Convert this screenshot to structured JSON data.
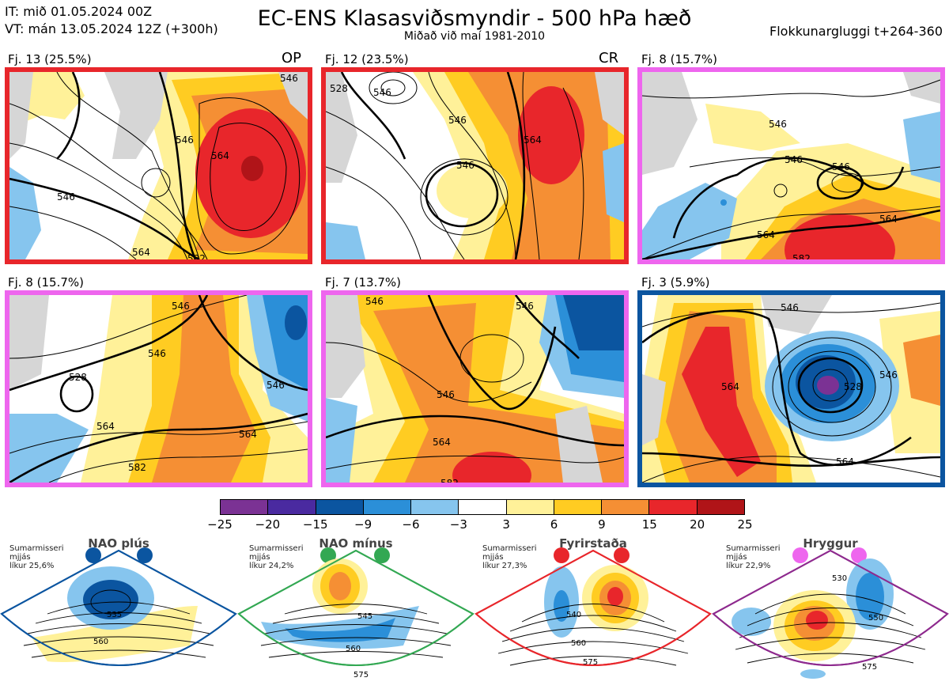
{
  "header": {
    "init_time": "IT: mið 01.05.2024 00Z",
    "valid_time": "VT: mán 13.05.2024 12Z  (+300h)",
    "title": "EC-ENS Klasasviðsmyndir - 500 hPa hæð",
    "subtitle": "Miðað við maí 1981-2010",
    "window": "Flokkunargluggi t+264-360"
  },
  "colors": {
    "nao_plus": "#0b55a0",
    "nao_minus": "#33a853",
    "blocking": "#e8262b",
    "ridge": "#ee66ee"
  },
  "panels": [
    {
      "label": "Fj. 13 (25.5%)",
      "tag": "OP",
      "border": "#e8262b",
      "contours": [
        "546",
        "546",
        "564",
        "546",
        "564",
        "582"
      ]
    },
    {
      "label": "Fj. 12 (23.5%)",
      "tag": "CR",
      "border": "#e8262b",
      "contours": [
        "546",
        "546",
        "564",
        "528",
        "546"
      ]
    },
    {
      "label": "Fj. 8 (15.7%)",
      "tag": "",
      "border": "#ee66ee",
      "contours": [
        "546",
        "546",
        "546",
        "564",
        "564",
        "582"
      ]
    },
    {
      "label": "Fj. 8 (15.7%)",
      "tag": "",
      "border": "#ee66ee",
      "contours": [
        "546",
        "546",
        "528",
        "546",
        "564",
        "582",
        "564"
      ]
    },
    {
      "label": "Fj. 7 (13.7%)",
      "tag": "",
      "border": "#ee66ee",
      "contours": [
        "546",
        "546",
        "546",
        "564",
        "582"
      ]
    },
    {
      "label": "Fj. 3 (5.9%)",
      "tag": "",
      "border": "#0b55a0",
      "contours": [
        "546",
        "546",
        "564",
        "528",
        "564"
      ]
    }
  ],
  "colorbar": {
    "ticks": [
      "−25",
      "−20",
      "−15",
      "−9",
      "−6",
      "−3",
      "3",
      "6",
      "9",
      "15",
      "20",
      "25"
    ],
    "colors": [
      "#7b3294",
      "#4a2aa0",
      "#0b55a0",
      "#2b8fd8",
      "#86c5ee",
      "#ffffff",
      "#fff199",
      "#ffcc22",
      "#f58f34",
      "#e8262b",
      "#b01418"
    ]
  },
  "regimes": [
    {
      "name": "NAO plús",
      "prob_line1": "Sumarmisseri",
      "prob_line2": "mjjás",
      "prob_line3": "líkur 25,6%",
      "contours": [
        "535",
        "560"
      ]
    },
    {
      "name": "NAO mínus",
      "prob_line1": "Sumarmisseri",
      "prob_line2": "mjjás",
      "prob_line3": "líkur 24,2%",
      "contours": [
        "545",
        "560",
        "575"
      ]
    },
    {
      "name": "Fyrirstaða",
      "prob_line1": "Sumarmisseri",
      "prob_line2": "mjjás",
      "prob_line3": "líkur 27,3%",
      "contours": [
        "540",
        "560",
        "575"
      ]
    },
    {
      "name": "Hryggur",
      "prob_line1": "Sumarmisseri",
      "prob_line2": "mjjás",
      "prob_line3": "líkur 22,9%",
      "contours": [
        "530",
        "550",
        "575"
      ]
    }
  ]
}
